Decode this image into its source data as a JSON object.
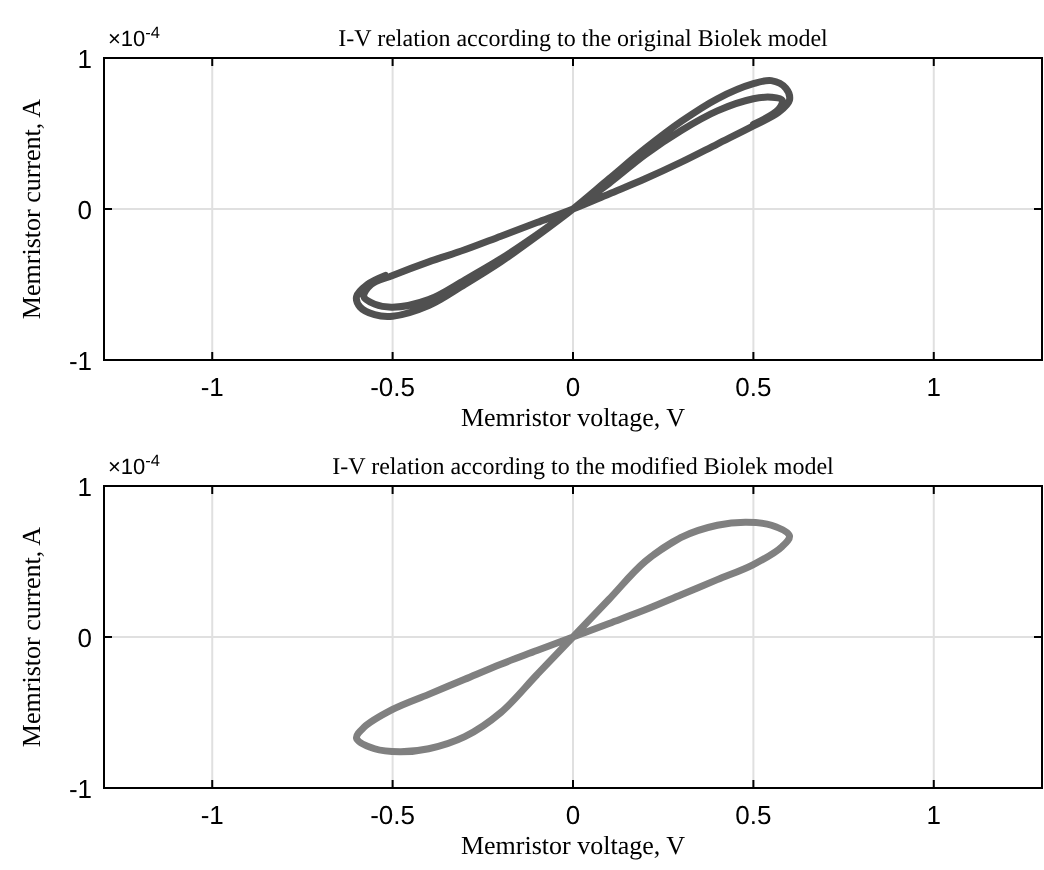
{
  "chart_data": [
    {
      "type": "line",
      "title": "I-V relation according to the original Biolek model",
      "xlabel": "Memristor voltage, V",
      "ylabel": "Memristor current, A",
      "annotations": [
        "×10$^{-4}$"
      ],
      "xlim": [
        -1.3,
        1.3
      ],
      "xticks": [
        -1,
        -0.5,
        0,
        0.5,
        1
      ],
      "ylim": [
        -1,
        1
      ],
      "yticks": [
        -1,
        0,
        1
      ],
      "grid": true,
      "marker": "none",
      "line_style": "solid",
      "series": [
        {
          "color": "#505050",
          "x": [
            -0.52,
            -0.57,
            -0.6,
            -0.59,
            -0.55,
            -0.5,
            -0.4,
            -0.3,
            -0.2,
            -0.1,
            0,
            0.1,
            0.2,
            0.3,
            0.4,
            0.5,
            0.55,
            0.59,
            0.6,
            0.57,
            0.5,
            0.4,
            0.3,
            0.2,
            0.1,
            0,
            -0.1,
            -0.2,
            -0.3,
            -0.4,
            -0.5,
            -0.56,
            -0.58,
            -0.55,
            -0.5,
            -0.4,
            -0.3,
            -0.2,
            -0.1,
            0,
            0.1,
            0.2,
            0.3,
            0.4,
            0.5,
            0.55,
            0.58,
            0.57,
            0.5
          ],
          "values": [
            -0.44,
            -0.5,
            -0.58,
            -0.65,
            -0.7,
            -0.71,
            -0.64,
            -0.5,
            -0.35,
            -0.18,
            0,
            0.2,
            0.4,
            0.58,
            0.73,
            0.83,
            0.85,
            0.8,
            0.72,
            0.64,
            0.55,
            0.43,
            0.31,
            0.2,
            0.1,
            0,
            -0.09,
            -0.18,
            -0.27,
            -0.35,
            -0.44,
            -0.5,
            -0.58,
            -0.63,
            -0.65,
            -0.6,
            -0.47,
            -0.33,
            -0.17,
            0,
            0.17,
            0.36,
            0.52,
            0.65,
            0.73,
            0.74,
            0.72,
            0.66,
            0.56
          ]
        }
      ]
    },
    {
      "type": "line",
      "title": "I-V relation according to the modified Biolek model",
      "xlabel": "Memristor voltage, V",
      "ylabel": "Memristor current, A",
      "annotations": [
        "×10$^{-4}$"
      ],
      "xlim": [
        -1.3,
        1.3
      ],
      "xticks": [
        -1,
        -0.5,
        0,
        0.5,
        1
      ],
      "ylim": [
        -1,
        1
      ],
      "yticks": [
        -1,
        0,
        1
      ],
      "grid": true,
      "marker": "none",
      "line_style": "solid",
      "series": [
        {
          "color": "#808080",
          "x": [
            0,
            0.1,
            0.2,
            0.3,
            0.4,
            0.48,
            0.55,
            0.6,
            0.58,
            0.5,
            0.4,
            0.3,
            0.2,
            0.1,
            0,
            -0.1,
            -0.2,
            -0.3,
            -0.4,
            -0.5,
            -0.58,
            -0.6,
            -0.55,
            -0.48,
            -0.4,
            -0.3,
            -0.2,
            -0.1,
            0,
            0.1,
            0.2,
            0.3
          ],
          "values": [
            0,
            0.25,
            0.5,
            0.66,
            0.74,
            0.76,
            0.74,
            0.67,
            0.6,
            0.48,
            0.38,
            0.28,
            0.18,
            0.09,
            0,
            -0.09,
            -0.18,
            -0.28,
            -0.38,
            -0.48,
            -0.6,
            -0.67,
            -0.74,
            -0.76,
            -0.74,
            -0.66,
            -0.5,
            -0.25,
            0,
            0.25,
            0.5,
            0.66
          ]
        }
      ]
    }
  ]
}
